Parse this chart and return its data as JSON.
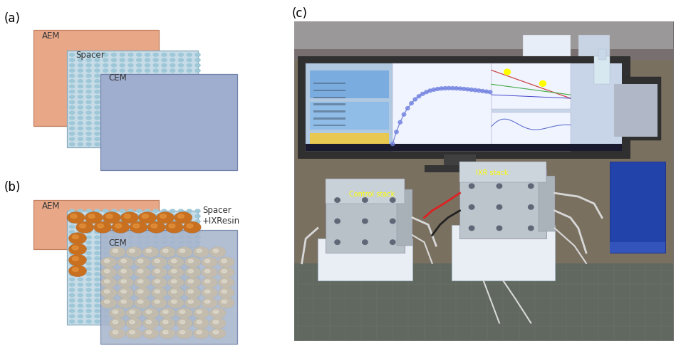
{
  "fig_width": 9.56,
  "fig_height": 4.93,
  "dpi": 100,
  "bg_color": "#ffffff",
  "label_a": "(a)",
  "label_b": "(b)",
  "label_c": "(c)",
  "label_fontsize": 12,
  "aem_color": "#e8a888",
  "cem_color_a": "#9faecf",
  "cem_color_b": "#a8b5cc",
  "spacer_bg": "#c8dce8",
  "spacer_dot": "#9ec8d8",
  "aem_edge": "#c08060",
  "cem_edge": "#7080a8",
  "spacer_edge": "#88aabb",
  "text_color": "#333333",
  "text_fontsize": 8.5,
  "aem_label": "AEM",
  "spacer_label": "Spacer",
  "cem_label": "CEM",
  "spacer_ixr_label1": "Spacer",
  "spacer_ixr_label2": "+IXResin",
  "orange_bead": "#c87020",
  "orange_bead_hi": "#e89840",
  "cream_bead": "#ccc0a8",
  "cream_bead_hi": "#e8e4d4",
  "photo_label": "Control stack",
  "photo_label2": "IXR stack",
  "photo_label_color": "#ffff00"
}
